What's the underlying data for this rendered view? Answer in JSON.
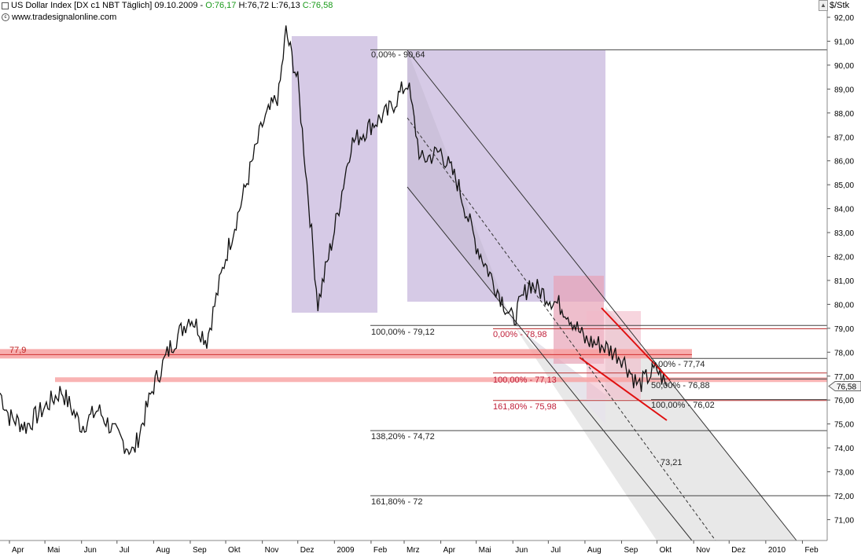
{
  "header": {
    "instrument": "US Dollar Index [DX c1 NBT  Täglich] 09.10.2009 -",
    "ohlc": [
      "O:76,17",
      "H:76,72",
      "L:76,13",
      "C:76,58"
    ],
    "website": "www.tradesignalonline.com",
    "unit": "$/Stk"
  },
  "chart_data": {
    "type": "line",
    "title": "US Dollar Index [DX c1 NBT  Täglich] 09.10.2009",
    "ylabel": "$/Stk",
    "ylim": [
      70.1,
      92.4
    ],
    "x_ticks": [
      "Apr",
      "Mai",
      "Jun",
      "Jul",
      "Aug",
      "Sep",
      "Okt",
      "Nov",
      "Dez",
      "2009",
      "Feb",
      "Mrz",
      "Apr",
      "Mai",
      "Jun",
      "Jul",
      "Aug",
      "Sep",
      "Okt",
      "Nov",
      "Dez",
      "2010",
      "Feb"
    ],
    "y_ticks": [
      "92,00",
      "91,00",
      "90,00",
      "89,00",
      "88,00",
      "87,00",
      "86,00",
      "85,00",
      "84,00",
      "83,00",
      "82,00",
      "81,00",
      "80,00",
      "79,00",
      "78,00",
      "77,00",
      "76,00",
      "75,00",
      "74,00",
      "73,00",
      "72,00",
      "71,00"
    ],
    "last_price": "76,58",
    "series": [
      {
        "values_dates": [
          "2008-03-24",
          "2008-04-01",
          "2008-04-15",
          "2008-05-01",
          "2008-05-15",
          "2008-06-01",
          "2008-06-15",
          "2008-07-01",
          "2008-07-15",
          "2008-08-01",
          "2008-08-15",
          "2008-09-01",
          "2008-09-15",
          "2008-10-01",
          "2008-10-15",
          "2008-11-01",
          "2008-11-15",
          "2008-11-21",
          "2008-12-01",
          "2008-12-10",
          "2008-12-18",
          "2009-01-01",
          "2009-01-15",
          "2009-02-01",
          "2009-02-15",
          "2009-03-04",
          "2009-03-15",
          "2009-04-01",
          "2009-04-15",
          "2009-05-01",
          "2009-05-15",
          "2009-06-01",
          "2009-06-15",
          "2009-07-01",
          "2009-07-15",
          "2009-08-01",
          "2009-08-15",
          "2009-09-01",
          "2009-09-15",
          "2009-10-01",
          "2009-10-09"
        ],
        "values": [
          76.3,
          75.3,
          74.9,
          75.7,
          76.4,
          74.9,
          75.6,
          74.5,
          73.8,
          76.6,
          78.2,
          79.5,
          78.5,
          82.0,
          84.4,
          87.5,
          88.8,
          91.4,
          89.3,
          84.4,
          80.0,
          83.1,
          86.7,
          87.5,
          88.0,
          89.3,
          86.0,
          86.4,
          85.1,
          82.5,
          81.0,
          79.3,
          80.9,
          80.3,
          79.8,
          78.5,
          78.3,
          77.8,
          76.6,
          77.3,
          76.58
        ]
      }
    ],
    "horizontal_lines": [
      {
        "label": "77,9",
        "value": 77.9
      },
      {
        "value": 76.8
      }
    ],
    "fibonacci_1": [
      "0,00% - 90,64",
      "100,00% - 79,12",
      "138,20% - 74,72",
      "161,80% - 72"
    ],
    "fibonacci_2": [
      "0,00% - 78,98",
      "100,00% - 77,13",
      "161,80% - 75,98"
    ],
    "fibonacci_3": [
      "0,00% - 77,74",
      "50,00% - 76,88",
      "100,00% - 76,02"
    ],
    "projection_label": "73,21"
  }
}
